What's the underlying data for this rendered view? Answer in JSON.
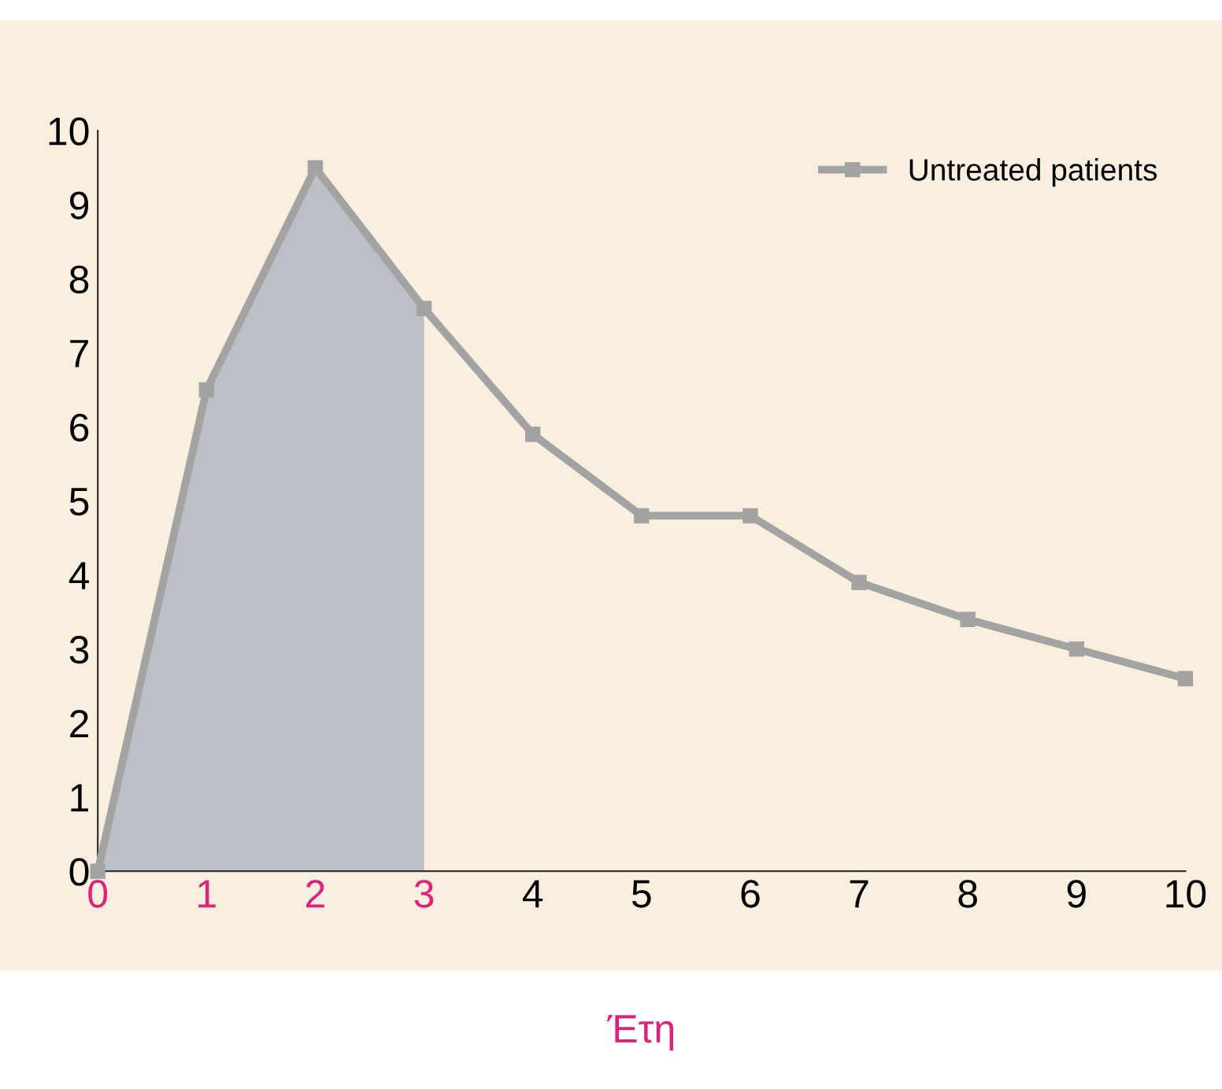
{
  "chart_data": {
    "type": "line",
    "xlabel": "Έτη",
    "series": [
      {
        "name": "Untreated patients",
        "color": "#a3a3a3",
        "x": [
          0,
          1,
          2,
          3,
          4,
          5,
          6,
          7,
          8,
          9,
          10
        ],
        "values": [
          0,
          6.5,
          9.5,
          7.6,
          5.9,
          4.8,
          4.8,
          3.9,
          3.4,
          3.0,
          2.6
        ],
        "marker": "square"
      },
      {
        "type": "area",
        "color": "#bcbfc6",
        "x": [
          0,
          1,
          2,
          3
        ],
        "values": [
          0,
          6.5,
          9.5,
          7.6
        ]
      }
    ],
    "xlim": [
      0,
      10
    ],
    "xticks": [
      0,
      1,
      2,
      3,
      4,
      5,
      6,
      7,
      8,
      9,
      10
    ],
    "ylim": [
      0,
      10
    ],
    "yticks": [
      0,
      1,
      2,
      3,
      4,
      5,
      6,
      7,
      8,
      9,
      10
    ],
    "grid": false,
    "legend": "top right"
  }
}
